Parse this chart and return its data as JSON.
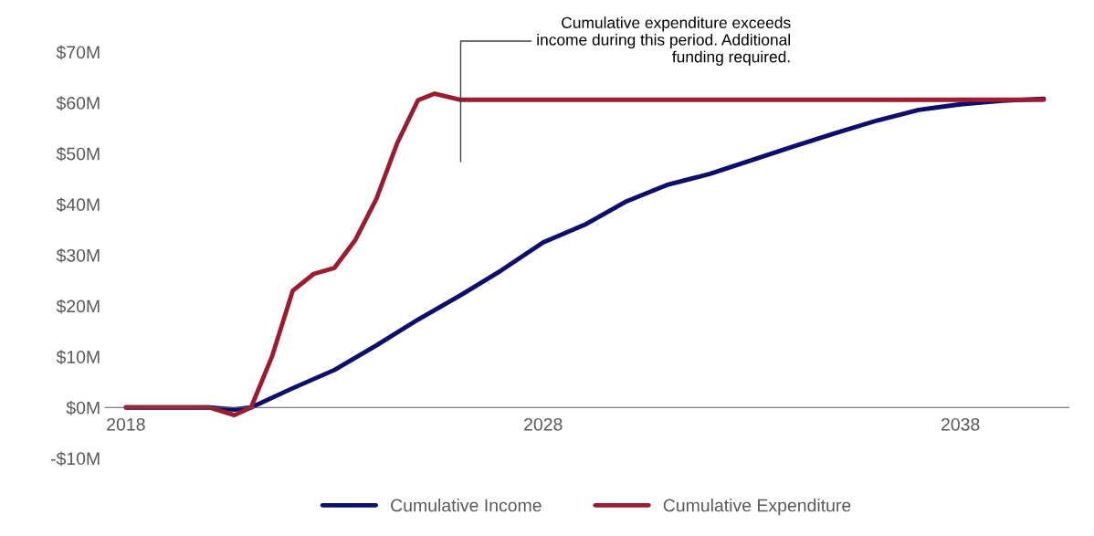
{
  "chart_data": {
    "type": "line",
    "annotations": [
      "Cumulative expenditure exceeds\nincome during this period. Additional\nfunding required."
    ],
    "series": [
      {
        "name": "Cumulative Income",
        "color": "#0d0d6b",
        "x": [
          2018,
          2019,
          2020,
          2020.6,
          2021,
          2022,
          2023,
          2024,
          2025,
          2026,
          2027,
          2028,
          2029,
          2030,
          2031,
          2032,
          2033,
          2034,
          2035,
          2036,
          2037,
          2038,
          2039,
          2040
        ],
        "values": [
          0,
          0,
          0,
          -0.4,
          0,
          3.8,
          7.4,
          12.2,
          17.3,
          22,
          27,
          32.5,
          36,
          40.6,
          43.9,
          46,
          48.7,
          51.4,
          54,
          56.5,
          58.6,
          59.7,
          60.4,
          60.8
        ]
      },
      {
        "name": "Cumulative Expenditure",
        "color": "#9b1b30",
        "x": [
          2018,
          2019,
          2020,
          2020.6,
          2021,
          2021.5,
          2022,
          2022.5,
          2023,
          2023.5,
          2024,
          2024.5,
          2025,
          2025.4,
          2026,
          2030,
          2035,
          2040
        ],
        "values": [
          0,
          0,
          0,
          -1.5,
          0,
          10,
          23,
          26.3,
          27.5,
          33,
          41,
          52,
          60.5,
          61.8,
          60.6,
          60.6,
          60.6,
          60.6
        ]
      }
    ],
    "xlim": [
      2017.5,
      2040.6
    ],
    "xticks": [
      2018,
      2028,
      2038
    ],
    "ylim": [
      -10,
      70
    ],
    "yticks": [
      {
        "value": -10,
        "label": "-$10M"
      },
      {
        "value": 0,
        "label": "$0M"
      },
      {
        "value": 10,
        "label": "$10M"
      },
      {
        "value": 20,
        "label": "$20M"
      },
      {
        "value": 30,
        "label": "$30M"
      },
      {
        "value": 40,
        "label": "$40M"
      },
      {
        "value": 50,
        "label": "$50M"
      },
      {
        "value": 60,
        "label": "$60M"
      },
      {
        "value": 70,
        "label": "$70M"
      }
    ],
    "grid": false,
    "legend": "bottom",
    "marker": "none",
    "line_style": "solid"
  }
}
